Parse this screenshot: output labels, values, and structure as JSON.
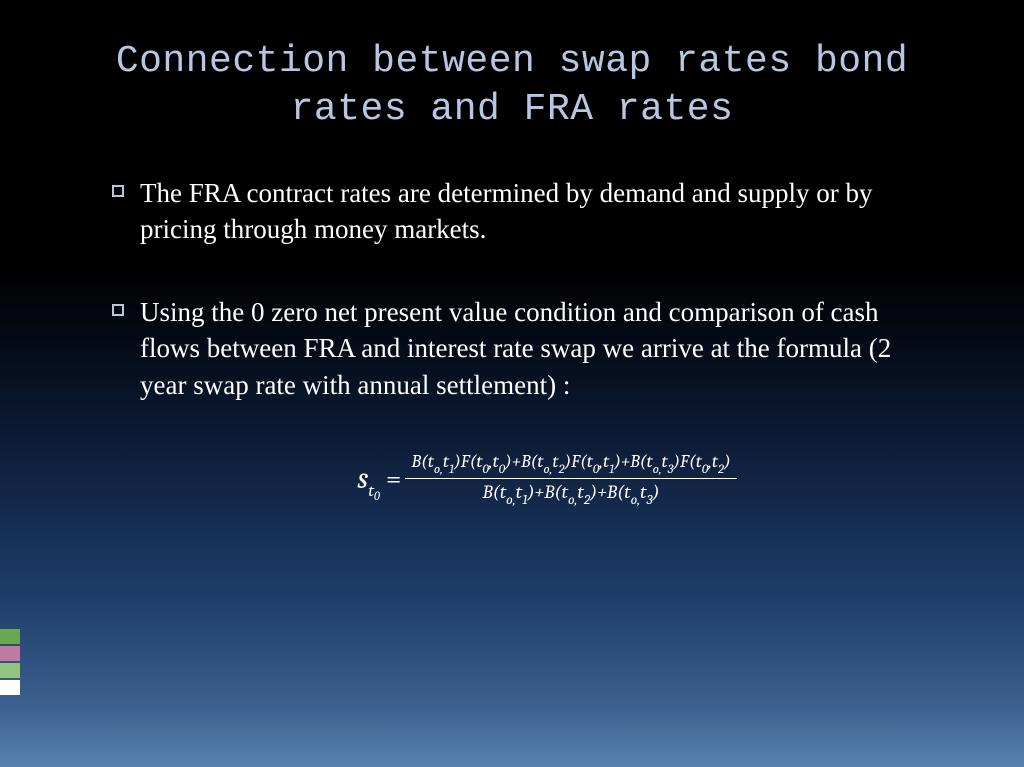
{
  "title": "Connection between swap rates bond rates and FRA rates",
  "bullets": [
    "The FRA contract rates are determined by  demand and supply or by pricing through money  markets.",
    "Using the 0 zero net present value condition and comparison of cash flows between  FRA and interest rate swap we arrive  at the formula (2 year swap rate with annual settlement) :"
  ],
  "formula": {
    "lhs": {
      "base": "s",
      "sub": "t",
      "subsub": "0"
    },
    "numerator_terms": [
      {
        "B": {
          "a": "o",
          "b": "1"
        },
        "F": {
          "a": "0",
          "b": "0"
        }
      },
      {
        "B": {
          "a": "o",
          "b": "2"
        },
        "F": {
          "a": "0",
          "b": "1"
        }
      },
      {
        "B": {
          "a": "o",
          "b": "3"
        },
        "F": {
          "a": "0",
          "b": "2"
        }
      }
    ],
    "denominator_terms": [
      {
        "a": "o",
        "b": "1"
      },
      {
        "a": "o",
        "b": "2"
      },
      {
        "a": "o",
        "b": "3"
      }
    ]
  },
  "styling": {
    "slide_width": 1024,
    "slide_height": 767,
    "background_gradient": [
      "#000000",
      "#000000",
      "#0a1830",
      "#1f3d6b",
      "#3c608f",
      "#5882b0"
    ],
    "title_color": "#b5c7e3",
    "title_font": "monospace",
    "title_fontsize": 38,
    "body_color": "#ffffff",
    "body_font": "serif",
    "body_fontsize": 27,
    "bullet_marker": {
      "type": "hollow-square",
      "color": "#b5c7e3",
      "size": 12
    },
    "formula_fontsize": 22,
    "side_tabs": [
      {
        "color": "#6aa84f"
      },
      {
        "color": "#c27ba0"
      },
      {
        "color": "#93c47d"
      },
      {
        "color": "#ffffff"
      }
    ]
  }
}
